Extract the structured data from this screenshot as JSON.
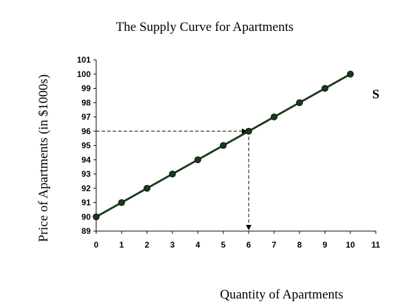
{
  "chart_data": {
    "type": "line",
    "title": "The Supply Curve for Apartments",
    "xlabel": "Quantity of Apartments",
    "ylabel": "Price of Apartments (in $1000s)",
    "series_label": "S",
    "x": [
      0,
      1,
      2,
      3,
      4,
      5,
      6,
      7,
      8,
      9,
      10
    ],
    "y": [
      90,
      91,
      92,
      93,
      94,
      95,
      96,
      97,
      98,
      99,
      100
    ],
    "xlim": [
      0,
      11
    ],
    "ylim": [
      89,
      101
    ],
    "xticks": [
      0,
      1,
      2,
      3,
      4,
      5,
      6,
      7,
      8,
      9,
      10,
      11
    ],
    "yticks": [
      89,
      90,
      91,
      92,
      93,
      94,
      95,
      96,
      97,
      98,
      99,
      100,
      101
    ],
    "reference_point": {
      "x": 6,
      "y": 96
    },
    "grid": false,
    "line_color": "#1a3a1a",
    "marker_color": "#1a3a1a"
  }
}
